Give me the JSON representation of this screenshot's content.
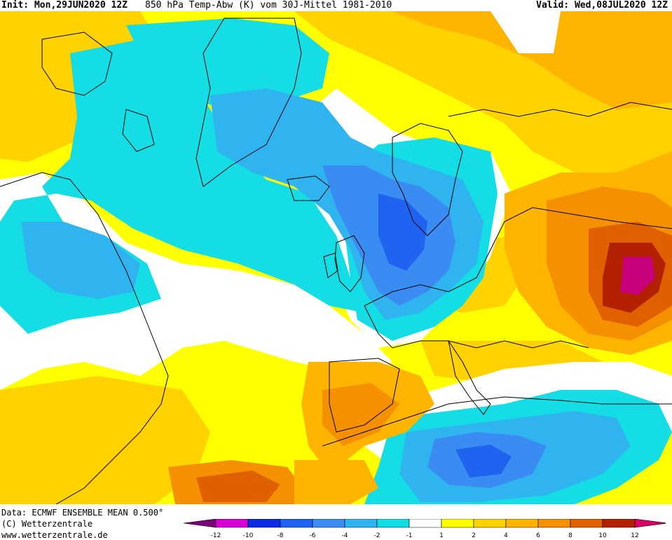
{
  "header": {
    "init": "Init: Mon,29JUN2020 12Z",
    "title": "850 hPa Temp-Abw (K) vom 30J-Mittel 1981-2010",
    "valid": "Valid: Wed,08JUL2020 12Z"
  },
  "footer": {
    "data_line": "Data: ECMWF ENSEMBLE MEAN 0.500°",
    "copyright": "(C) Wetterzentrale",
    "url": "www.wetterzentrale.de"
  },
  "colorbar": {
    "colors": [
      "#7a007a",
      "#d400d4",
      "#0a2be0",
      "#1f63f0",
      "#3b8cf2",
      "#2fb4f0",
      "#14dde6",
      "#ffffff",
      "#ffff00",
      "#ffd200",
      "#ffb400",
      "#f59000",
      "#e06000",
      "#b22000",
      "#dc0064"
    ],
    "ticks": [
      "-12",
      "-10",
      "-8",
      "-6",
      "-4",
      "-2",
      "-1",
      "1",
      "2",
      "4",
      "6",
      "8",
      "10",
      "12"
    ]
  },
  "map_colors": {
    "white": "#ffffff",
    "y1": "#ffff00",
    "y2": "#ffd200",
    "y3": "#ffb400",
    "o1": "#f59000",
    "o2": "#e06000",
    "r1": "#b22000",
    "m1": "#c8007a",
    "c1": "#14dde6",
    "c2": "#2fb4f0",
    "c3": "#3b8cf2",
    "c4": "#1f63f0",
    "coast": "#000000"
  }
}
